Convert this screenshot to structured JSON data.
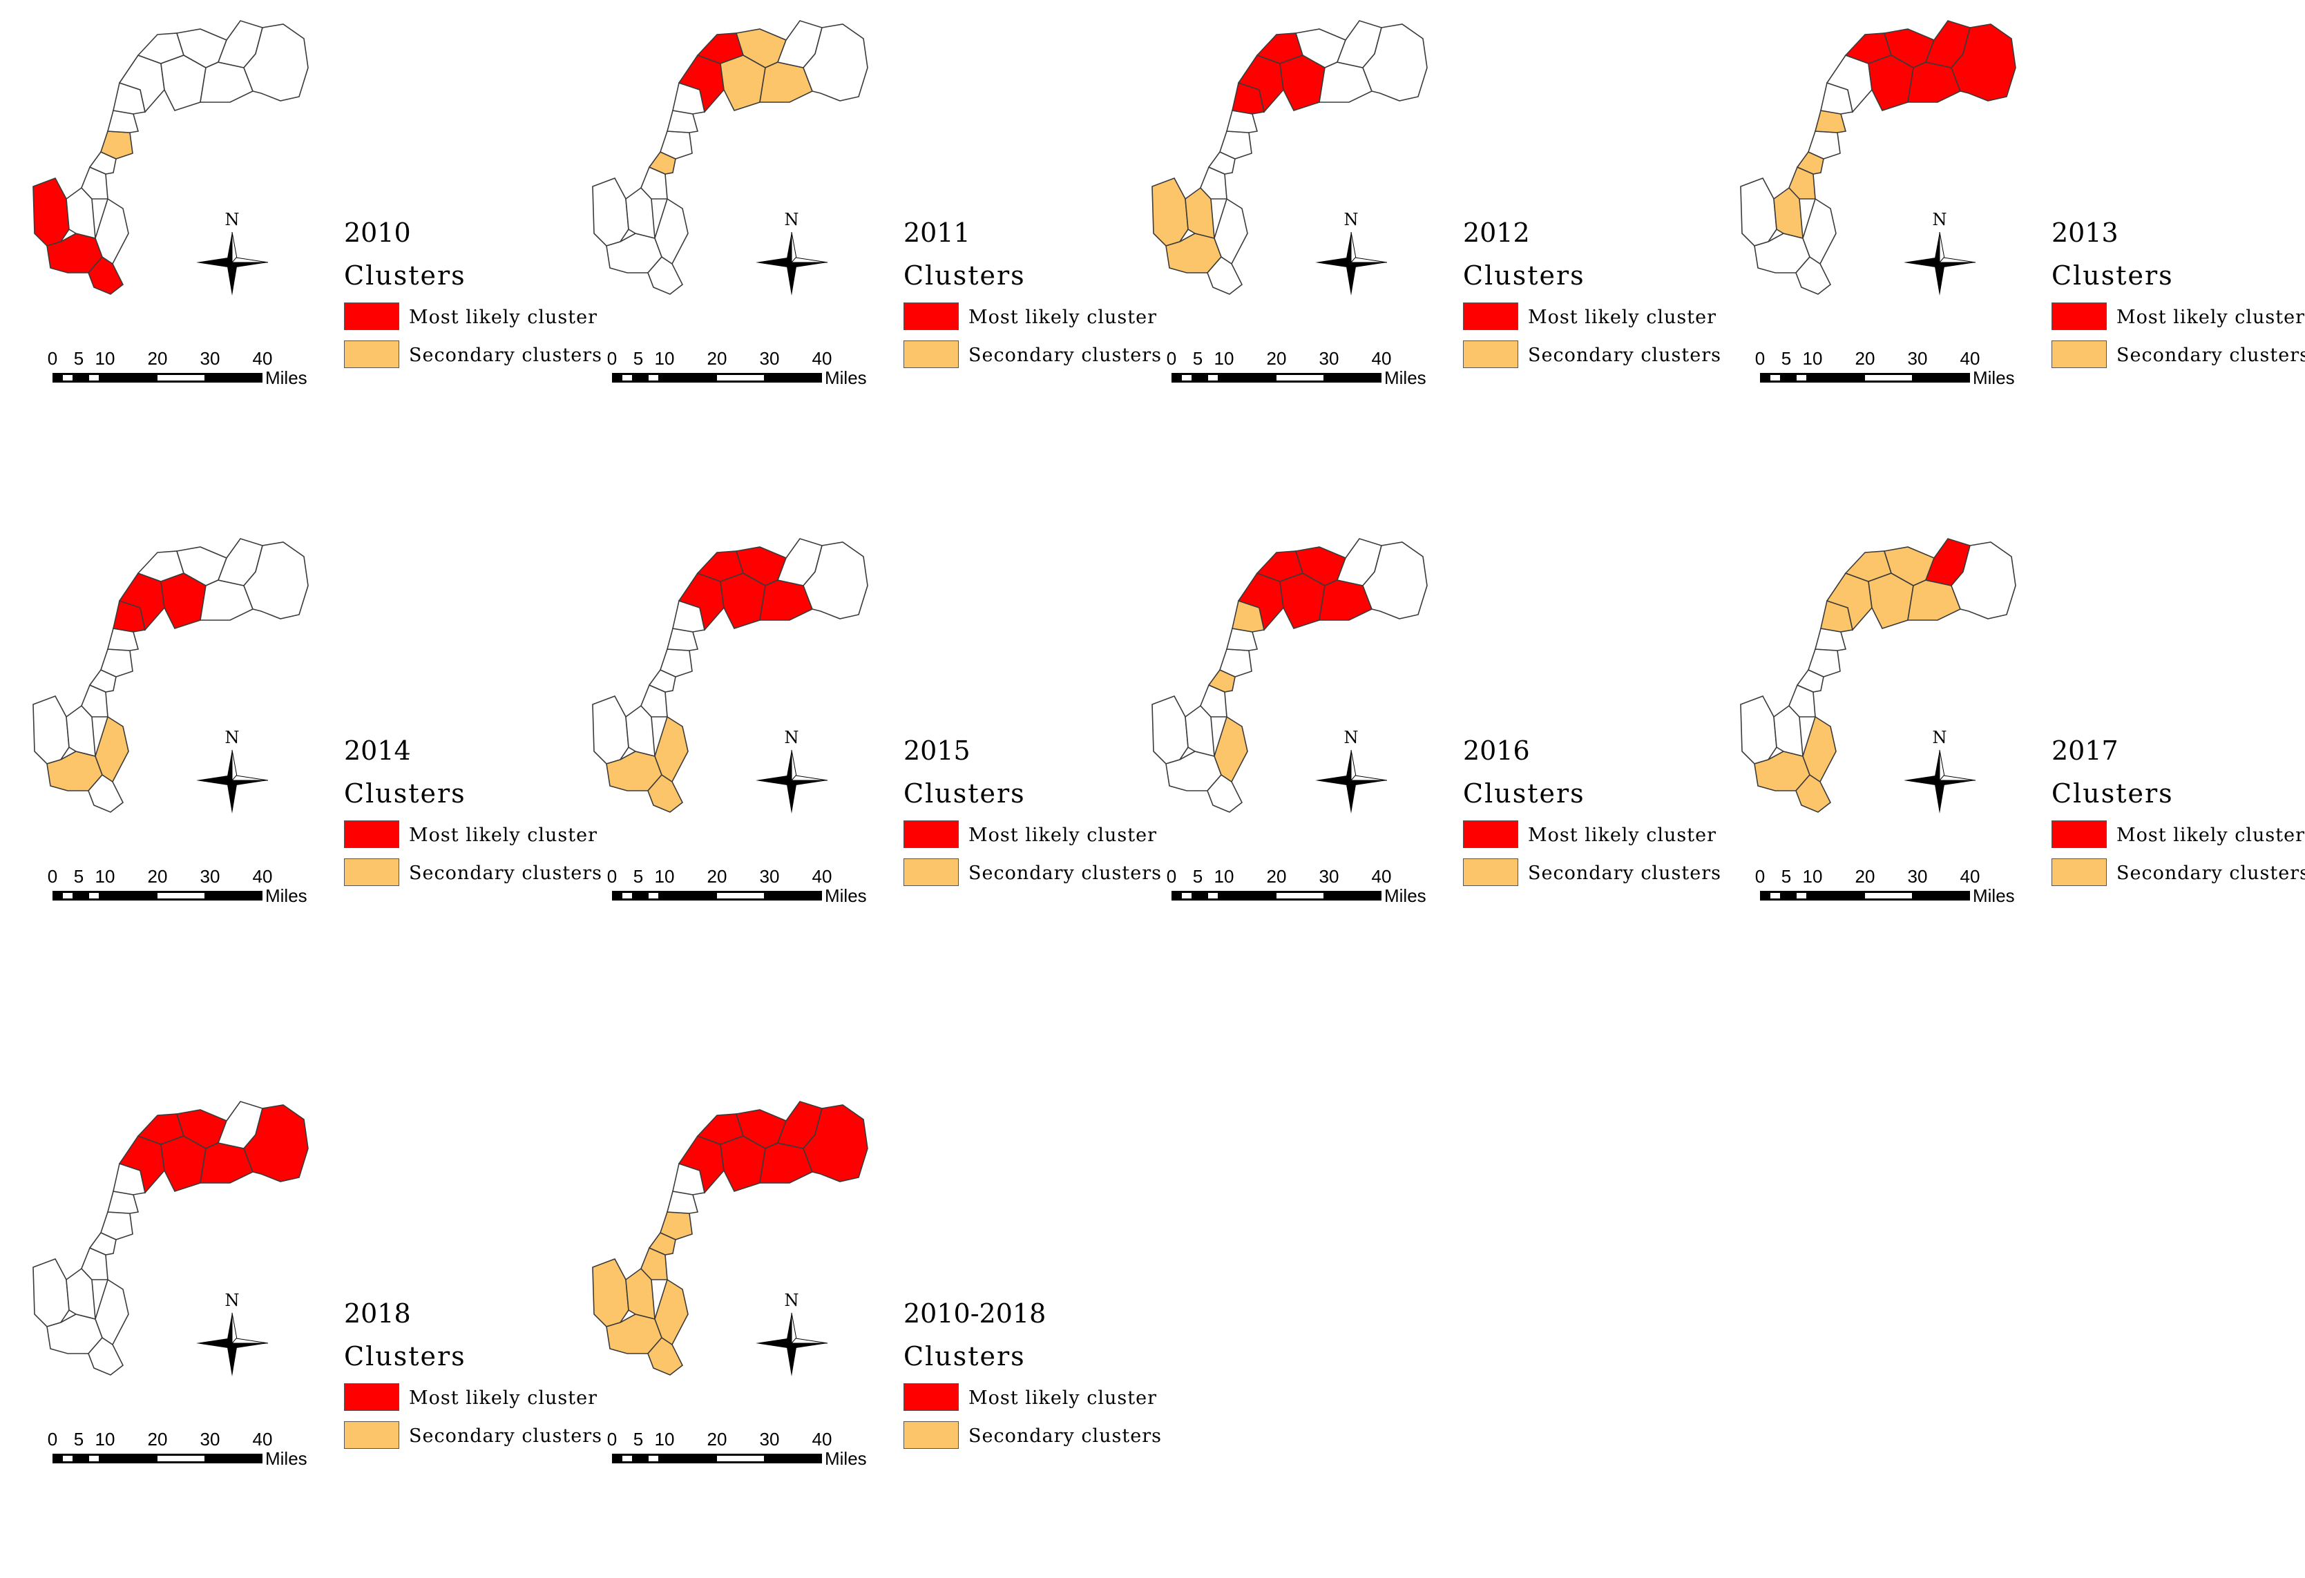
{
  "colors": {
    "most_likely": "#ff0000",
    "secondary": "#fdc56a",
    "none": "#ffffff",
    "border": "#3a3a3a"
  },
  "legend": {
    "title": "Clusters",
    "most_likely_label": "Most likely cluster",
    "secondary_label": "Secondary clusters"
  },
  "scale": {
    "ticks": [
      "0",
      "5",
      "10",
      "20",
      "30",
      "40"
    ],
    "unit": "Miles"
  },
  "compass_label": "N",
  "panels": [
    {
      "year": "2010",
      "most_likely": [
        "r0",
        "r1",
        "r2"
      ],
      "secondary": [
        "r7"
      ]
    },
    {
      "year": "2011",
      "most_likely": [
        "r10",
        "r11"
      ],
      "secondary": [
        "r12",
        "r13",
        "r14",
        "r6"
      ]
    },
    {
      "year": "2012",
      "most_likely": [
        "r10",
        "r11",
        "r9",
        "r12"
      ],
      "secondary": [
        "r0",
        "r1",
        "r3"
      ]
    },
    {
      "year": "2013",
      "most_likely": [
        "r11",
        "r12",
        "r13",
        "r14",
        "r15",
        "r16"
      ],
      "secondary": [
        "r3",
        "r4",
        "r6",
        "r8"
      ]
    },
    {
      "year": "2014",
      "most_likely": [
        "r9",
        "r10",
        "r12"
      ],
      "secondary": [
        "r1",
        "r5"
      ]
    },
    {
      "year": "2015",
      "most_likely": [
        "r10",
        "r11",
        "r12",
        "r13",
        "r14"
      ],
      "secondary": [
        "r1",
        "r2",
        "r5"
      ]
    },
    {
      "year": "2016",
      "most_likely": [
        "r10",
        "r11",
        "r12",
        "r13",
        "r14"
      ],
      "secondary": [
        "r9",
        "r5",
        "r6"
      ]
    },
    {
      "year": "2017",
      "most_likely": [
        "r15"
      ],
      "secondary": [
        "r10",
        "r11",
        "r12",
        "r13",
        "r14",
        "r9",
        "r5",
        "r1",
        "r2"
      ]
    },
    {
      "year": "2018",
      "most_likely": [
        "r10",
        "r11",
        "r12",
        "r13",
        "r14",
        "r16"
      ],
      "secondary": []
    },
    {
      "year": "2010-2018",
      "most_likely": [
        "r10",
        "r11",
        "r12",
        "r13",
        "r14",
        "r15",
        "r16"
      ],
      "secondary": [
        "r0",
        "r1",
        "r2",
        "r3",
        "r4",
        "r5",
        "r6",
        "r7"
      ]
    }
  ]
}
